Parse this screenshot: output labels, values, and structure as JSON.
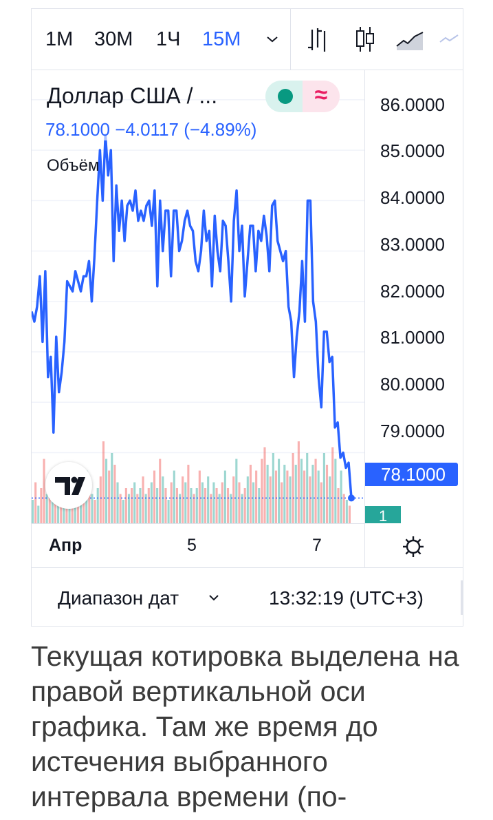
{
  "toolbar": {
    "intervals": [
      "1M",
      "30M",
      "1Ч",
      "15M"
    ],
    "active_interval": "15M",
    "chart_types": [
      "bars-icon",
      "candles-icon",
      "area-icon",
      "line-icon"
    ]
  },
  "legend": {
    "title": "Доллар США / ...",
    "price": "78.1000",
    "change": "−4.0117 (−4.89%)",
    "volume_label": "Объём",
    "status": "market-open-dot",
    "delay_symbol": "≈"
  },
  "price_axis": {
    "ticks": [
      "86.0000",
      "85.0000",
      "84.0000",
      "83.0000",
      "82.0000",
      "81.0000",
      "80.0000",
      "79.0000"
    ],
    "current_price": "78.1000",
    "bar_countdown": "1"
  },
  "time_axis": {
    "labels": [
      "Апр",
      "5",
      "7"
    ]
  },
  "footer": {
    "range_label": "Диапазон дат",
    "time": "13:32:19 (UTC+3)"
  },
  "article": {
    "text": "Текущая котировка выделена на правой вертикальной оси графика. Там же время до истечения выбранного интервала времени (по-"
  },
  "colors": {
    "line": "#2962ff",
    "up_volume": "#26a69a",
    "down_volume": "#ef5350",
    "grid": "#f0f3fa",
    "axis_text": "#131722"
  },
  "chart_data": {
    "type": "line",
    "series": [
      {
        "values": [
          81.8,
          81.6,
          81.9,
          82.5,
          81.2,
          82.6,
          80.5,
          80.9,
          79.4,
          81.3,
          80.2,
          80.6,
          81.2,
          82.4,
          82.3,
          82.2,
          82.6,
          82.4,
          82.2,
          82.5,
          82.5,
          82.8,
          82.0,
          82.9,
          84.0,
          85.0,
          84.0,
          85.3,
          84.5,
          85.0,
          82.8,
          84.3,
          83.4,
          84.0,
          83.2,
          83.9,
          84.0,
          83.8,
          84.2,
          83.6,
          83.8,
          83.6,
          83.9,
          84.0,
          83.5,
          84.2,
          82.3,
          84.0,
          83.0,
          83.8,
          83.8,
          82.5,
          83.8,
          83.8,
          83.0,
          83.2,
          83.6,
          83.8,
          83.5,
          83.4,
          82.8,
          82.6,
          83.0,
          83.8,
          83.2,
          83.4,
          82.3,
          83.7,
          83.0,
          82.6,
          83.6,
          83.5,
          82.8,
          82.0,
          83.6,
          84.2,
          83.0,
          83.5,
          82.1,
          82.8,
          83.5,
          83.5,
          82.6,
          83.4,
          83.2,
          83.7,
          83.3,
          82.6,
          83.9,
          84.0,
          83.2,
          83.0,
          82.8,
          83.0,
          81.9,
          81.6,
          80.5,
          81.3,
          81.8,
          82.8,
          81.6,
          84.0,
          84.0,
          82.0,
          81.6,
          80.5,
          79.9,
          81.4,
          81.4,
          80.8,
          80.9,
          79.5,
          79.6,
          78.9,
          79.0,
          78.7,
          78.8,
          78.1
        ]
      }
    ],
    "volume": [
      {
        "v": 0.2,
        "up": true
      },
      {
        "v": 0.35,
        "up": false
      },
      {
        "v": 0.15,
        "up": true
      },
      {
        "v": 0.3,
        "up": false
      },
      {
        "v": 0.55,
        "up": false
      },
      {
        "v": 0.25,
        "up": true
      },
      {
        "v": 0.3,
        "up": false
      },
      {
        "v": 0.45,
        "up": true
      },
      {
        "v": 0.25,
        "up": false
      },
      {
        "v": 0.2,
        "up": true
      },
      {
        "v": 0.15,
        "up": false
      },
      {
        "v": 0.2,
        "up": true
      },
      {
        "v": 0.35,
        "up": false
      },
      {
        "v": 0.3,
        "up": true
      },
      {
        "v": 0.4,
        "up": false
      },
      {
        "v": 0.35,
        "up": true
      },
      {
        "v": 0.2,
        "up": false
      },
      {
        "v": 0.25,
        "up": true
      },
      {
        "v": 0.3,
        "up": false
      },
      {
        "v": 0.45,
        "up": true
      },
      {
        "v": 0.35,
        "up": false
      },
      {
        "v": 0.25,
        "up": true
      },
      {
        "v": 0.2,
        "up": false
      },
      {
        "v": 0.3,
        "up": true
      },
      {
        "v": 0.4,
        "up": false
      },
      {
        "v": 0.7,
        "up": false
      },
      {
        "v": 0.55,
        "up": true
      },
      {
        "v": 0.45,
        "up": false
      },
      {
        "v": 0.6,
        "up": true
      },
      {
        "v": 0.5,
        "up": false
      },
      {
        "v": 0.35,
        "up": true
      },
      {
        "v": 0.25,
        "up": false
      },
      {
        "v": 0.2,
        "up": true
      },
      {
        "v": 0.3,
        "up": false
      },
      {
        "v": 0.25,
        "up": true
      },
      {
        "v": 0.3,
        "up": false
      },
      {
        "v": 0.35,
        "up": true
      },
      {
        "v": 0.25,
        "up": false
      },
      {
        "v": 0.3,
        "up": true
      },
      {
        "v": 0.4,
        "up": false
      },
      {
        "v": 0.25,
        "up": true
      },
      {
        "v": 0.3,
        "up": false
      },
      {
        "v": 0.35,
        "up": true
      },
      {
        "v": 0.45,
        "up": false
      },
      {
        "v": 0.3,
        "up": true
      },
      {
        "v": 0.55,
        "up": false
      },
      {
        "v": 0.4,
        "up": true
      },
      {
        "v": 0.3,
        "up": false
      },
      {
        "v": 0.2,
        "up": true
      },
      {
        "v": 0.35,
        "up": false
      },
      {
        "v": 0.45,
        "up": true
      },
      {
        "v": 0.3,
        "up": false
      },
      {
        "v": 0.25,
        "up": true
      },
      {
        "v": 0.4,
        "up": false
      },
      {
        "v": 0.35,
        "up": true
      },
      {
        "v": 0.5,
        "up": false
      },
      {
        "v": 0.3,
        "up": true
      },
      {
        "v": 0.25,
        "up": false
      },
      {
        "v": 0.3,
        "up": true
      },
      {
        "v": 0.45,
        "up": false
      },
      {
        "v": 0.35,
        "up": true
      },
      {
        "v": 0.3,
        "up": false
      },
      {
        "v": 0.4,
        "up": true
      },
      {
        "v": 0.25,
        "up": false
      },
      {
        "v": 0.35,
        "up": true
      },
      {
        "v": 0.3,
        "up": false
      },
      {
        "v": 0.25,
        "up": true
      },
      {
        "v": 0.35,
        "up": false
      },
      {
        "v": 0.45,
        "up": true
      },
      {
        "v": 0.3,
        "up": false
      },
      {
        "v": 0.25,
        "up": true
      },
      {
        "v": 0.4,
        "up": false
      },
      {
        "v": 0.55,
        "up": true
      },
      {
        "v": 0.35,
        "up": false
      },
      {
        "v": 0.25,
        "up": true
      },
      {
        "v": 0.3,
        "up": false
      },
      {
        "v": 0.4,
        "up": true
      },
      {
        "v": 0.5,
        "up": false
      },
      {
        "v": 0.35,
        "up": true
      },
      {
        "v": 0.45,
        "up": false
      },
      {
        "v": 0.3,
        "up": true
      },
      {
        "v": 0.55,
        "up": false
      },
      {
        "v": 0.65,
        "up": false
      },
      {
        "v": 0.5,
        "up": true
      },
      {
        "v": 0.4,
        "up": false
      },
      {
        "v": 0.6,
        "up": true
      },
      {
        "v": 0.45,
        "up": false
      },
      {
        "v": 0.55,
        "up": true
      },
      {
        "v": 0.35,
        "up": false
      },
      {
        "v": 0.5,
        "up": true
      },
      {
        "v": 0.45,
        "up": false
      },
      {
        "v": 0.4,
        "up": true
      },
      {
        "v": 0.6,
        "up": false
      },
      {
        "v": 0.5,
        "up": true
      },
      {
        "v": 0.7,
        "up": false
      },
      {
        "v": 0.55,
        "up": true
      },
      {
        "v": 0.45,
        "up": false
      },
      {
        "v": 0.6,
        "up": true
      },
      {
        "v": 0.4,
        "up": false
      },
      {
        "v": 0.5,
        "up": true
      },
      {
        "v": 0.55,
        "up": false
      },
      {
        "v": 0.45,
        "up": true
      },
      {
        "v": 0.35,
        "up": false
      },
      {
        "v": 0.6,
        "up": true
      },
      {
        "v": 0.5,
        "up": false
      },
      {
        "v": 0.4,
        "up": true
      },
      {
        "v": 0.65,
        "up": false
      },
      {
        "v": 0.55,
        "up": true
      },
      {
        "v": 0.3,
        "up": false
      },
      {
        "v": 0.45,
        "up": true
      },
      {
        "v": 0.25,
        "up": false
      },
      {
        "v": 0.2,
        "up": true
      },
      {
        "v": 0.15,
        "up": false
      }
    ],
    "ylim": [
      77.6,
      86.6
    ]
  }
}
